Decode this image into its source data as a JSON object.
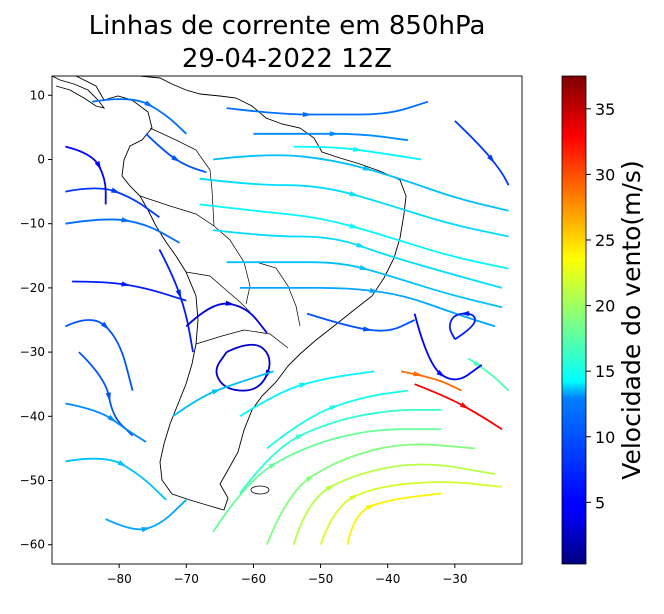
{
  "chart_data": {
    "type": "streamplot",
    "title": "Linhas de corrente em 850hPa",
    "subtitle": "29-04-2022 12Z",
    "xlabel": "",
    "ylabel": "",
    "xlim": [
      -90,
      -20
    ],
    "ylim": [
      -63,
      13
    ],
    "x_ticks": [
      -80,
      -70,
      -60,
      -50,
      -40,
      -30
    ],
    "y_ticks": [
      10,
      0,
      -10,
      -20,
      -30,
      -40,
      -50,
      -60
    ],
    "colorbar": {
      "label": "Velocidade do vento(m/s)",
      "colormap": "jet",
      "range": [
        0.3,
        37.5
      ],
      "ticks": [
        5,
        10,
        15,
        20,
        25,
        30,
        35
      ]
    },
    "streamlines": [
      {
        "speed": 9,
        "points": [
          [
            -88,
            -10
          ],
          [
            -82,
            -9
          ],
          [
            -76,
            -10
          ],
          [
            -71,
            -13
          ]
        ]
      },
      {
        "speed": 7,
        "points": [
          [
            -88,
            -5
          ],
          [
            -83,
            -4
          ],
          [
            -78,
            -6
          ],
          [
            -74,
            -9
          ]
        ]
      },
      {
        "speed": 5,
        "points": [
          [
            -88,
            2
          ],
          [
            -84,
            1
          ],
          [
            -82,
            -3
          ],
          [
            -82,
            -7
          ]
        ]
      },
      {
        "speed": 6,
        "points": [
          [
            -87,
            -19
          ],
          [
            -82,
            -19
          ],
          [
            -76,
            -20
          ],
          [
            -70,
            -22
          ]
        ]
      },
      {
        "speed": 8,
        "points": [
          [
            -88,
            -26
          ],
          [
            -84,
            -24
          ],
          [
            -80,
            -28
          ],
          [
            -78,
            -36
          ]
        ]
      },
      {
        "speed": 8,
        "points": [
          [
            -86,
            -30
          ],
          [
            -82,
            -34
          ],
          [
            -81,
            -40
          ],
          [
            -78,
            -43
          ]
        ]
      },
      {
        "speed": 10,
        "points": [
          [
            -88,
            -38
          ],
          [
            -83,
            -39
          ],
          [
            -79,
            -42
          ],
          [
            -76,
            -44
          ]
        ]
      },
      {
        "speed": 12,
        "points": [
          [
            -88,
            -47
          ],
          [
            -82,
            -46
          ],
          [
            -77,
            -49
          ],
          [
            -73,
            -53
          ]
        ]
      },
      {
        "speed": 11,
        "points": [
          [
            -82,
            -56
          ],
          [
            -78,
            -58
          ],
          [
            -74,
            -57
          ],
          [
            -70,
            -53
          ]
        ]
      },
      {
        "speed": 9,
        "points": [
          [
            -84,
            9
          ],
          [
            -78,
            10
          ],
          [
            -73,
            7
          ],
          [
            -70,
            4
          ]
        ]
      },
      {
        "speed": 8,
        "points": [
          [
            -76,
            4
          ],
          [
            -73,
            1
          ],
          [
            -70,
            -1
          ],
          [
            -67,
            -2
          ]
        ]
      },
      {
        "speed": 6,
        "points": [
          [
            -74,
            -14
          ],
          [
            -72,
            -18
          ],
          [
            -70,
            -24
          ],
          [
            -69,
            -30
          ]
        ]
      },
      {
        "speed": 4,
        "points": [
          [
            -70,
            -26
          ],
          [
            -66,
            -22
          ],
          [
            -61,
            -23
          ],
          [
            -58,
            -27
          ]
        ]
      },
      {
        "speed": 3,
        "points": [
          [
            -64,
            -30
          ],
          [
            -60,
            -28
          ],
          [
            -57,
            -31
          ],
          [
            -59,
            -36
          ],
          [
            -64,
            -36
          ],
          [
            -66,
            -33
          ],
          [
            -64,
            -30
          ]
        ]
      },
      {
        "speed": 12,
        "points": [
          [
            -72,
            -40
          ],
          [
            -68,
            -37
          ],
          [
            -63,
            -35
          ],
          [
            -57,
            -33
          ]
        ]
      },
      {
        "speed": 14,
        "points": [
          [
            -62,
            -40
          ],
          [
            -56,
            -36
          ],
          [
            -49,
            -34
          ],
          [
            -42,
            -33
          ]
        ]
      },
      {
        "speed": 15,
        "points": [
          [
            -58,
            -45
          ],
          [
            -52,
            -40
          ],
          [
            -44,
            -37
          ],
          [
            -37,
            -36
          ]
        ]
      },
      {
        "speed": 16,
        "points": [
          [
            -62,
            -52
          ],
          [
            -57,
            -45
          ],
          [
            -49,
            -41
          ],
          [
            -40,
            -39
          ],
          [
            -32,
            -39
          ]
        ]
      },
      {
        "speed": 18,
        "points": [
          [
            -66,
            -58
          ],
          [
            -61,
            -50
          ],
          [
            -53,
            -45
          ],
          [
            -43,
            -42
          ],
          [
            -32,
            -42
          ]
        ]
      },
      {
        "speed": 19,
        "points": [
          [
            -58,
            -60
          ],
          [
            -55,
            -52
          ],
          [
            -48,
            -47
          ],
          [
            -38,
            -44
          ],
          [
            -27,
            -45
          ]
        ]
      },
      {
        "speed": 21,
        "points": [
          [
            -54,
            -60
          ],
          [
            -52,
            -53
          ],
          [
            -45,
            -49
          ],
          [
            -35,
            -47
          ],
          [
            -24,
            -49
          ]
        ]
      },
      {
        "speed": 22,
        "points": [
          [
            -50,
            -60
          ],
          [
            -48,
            -54
          ],
          [
            -42,
            -51
          ],
          [
            -32,
            -50
          ],
          [
            -23,
            -51
          ]
        ]
      },
      {
        "speed": 24,
        "points": [
          [
            -46,
            -60
          ],
          [
            -45,
            -55
          ],
          [
            -40,
            -53
          ],
          [
            -32,
            -52
          ]
        ]
      },
      {
        "speed": 33,
        "points": [
          [
            -36,
            -35
          ],
          [
            -31,
            -37
          ],
          [
            -26,
            -40
          ],
          [
            -23,
            -42
          ]
        ]
      },
      {
        "speed": 29,
        "points": [
          [
            -38,
            -33
          ],
          [
            -33,
            -34
          ],
          [
            -29,
            -36
          ]
        ]
      },
      {
        "speed": 17,
        "points": [
          [
            -28,
            -31
          ],
          [
            -25,
            -33
          ],
          [
            -22,
            -36
          ]
        ]
      },
      {
        "speed": 12,
        "points": [
          [
            -66,
            0
          ],
          [
            -58,
            1
          ],
          [
            -48,
            0
          ],
          [
            -38,
            -3
          ],
          [
            -30,
            -6
          ],
          [
            -22,
            -8
          ]
        ]
      },
      {
        "speed": 13,
        "points": [
          [
            -68,
            -3
          ],
          [
            -60,
            -4
          ],
          [
            -50,
            -4
          ],
          [
            -40,
            -7
          ],
          [
            -31,
            -10
          ],
          [
            -22,
            -12
          ]
        ]
      },
      {
        "speed": 14,
        "points": [
          [
            -68,
            -7
          ],
          [
            -60,
            -8
          ],
          [
            -50,
            -9
          ],
          [
            -40,
            -12
          ],
          [
            -31,
            -15
          ],
          [
            -22,
            -17
          ]
        ]
      },
      {
        "speed": 13,
        "points": [
          [
            -66,
            -11
          ],
          [
            -58,
            -12
          ],
          [
            -48,
            -12
          ],
          [
            -40,
            -15
          ],
          [
            -30,
            -18
          ],
          [
            -23,
            -20
          ]
        ]
      },
      {
        "speed": 12,
        "points": [
          [
            -64,
            -16
          ],
          [
            -56,
            -16
          ],
          [
            -47,
            -16
          ],
          [
            -40,
            -18
          ],
          [
            -31,
            -21
          ],
          [
            -23,
            -23
          ]
        ]
      },
      {
        "speed": 11,
        "points": [
          [
            -62,
            -20
          ],
          [
            -54,
            -20
          ],
          [
            -46,
            -20
          ],
          [
            -38,
            -21
          ],
          [
            -30,
            -24
          ],
          [
            -24,
            -26
          ]
        ]
      },
      {
        "speed": 10,
        "points": [
          [
            -60,
            4
          ],
          [
            -52,
            4
          ],
          [
            -44,
            4
          ],
          [
            -37,
            3
          ]
        ]
      },
      {
        "speed": 9,
        "points": [
          [
            -64,
            8
          ],
          [
            -56,
            7
          ],
          [
            -48,
            7
          ],
          [
            -40,
            7
          ],
          [
            -34,
            9
          ]
        ]
      },
      {
        "speed": 14,
        "points": [
          [
            -54,
            2
          ],
          [
            -48,
            2
          ],
          [
            -41,
            1
          ],
          [
            -35,
            0
          ]
        ]
      },
      {
        "speed": 7,
        "points": [
          [
            -30,
            6
          ],
          [
            -26,
            2
          ],
          [
            -23,
            -2
          ],
          [
            -22,
            -4
          ]
        ]
      },
      {
        "speed": 6,
        "points": [
          [
            -30,
            -28
          ],
          [
            -27,
            -26
          ],
          [
            -27,
            -24
          ],
          [
            -30,
            -24
          ],
          [
            -31,
            -26
          ],
          [
            -30,
            -28
          ]
        ]
      },
      {
        "speed": 5,
        "points": [
          [
            -36,
            -24
          ],
          [
            -34,
            -32
          ],
          [
            -30,
            -35
          ],
          [
            -26,
            -32
          ]
        ]
      },
      {
        "speed": 8,
        "points": [
          [
            -52,
            -24
          ],
          [
            -46,
            -26
          ],
          [
            -40,
            -27
          ],
          [
            -36,
            -25
          ]
        ]
      }
    ]
  }
}
